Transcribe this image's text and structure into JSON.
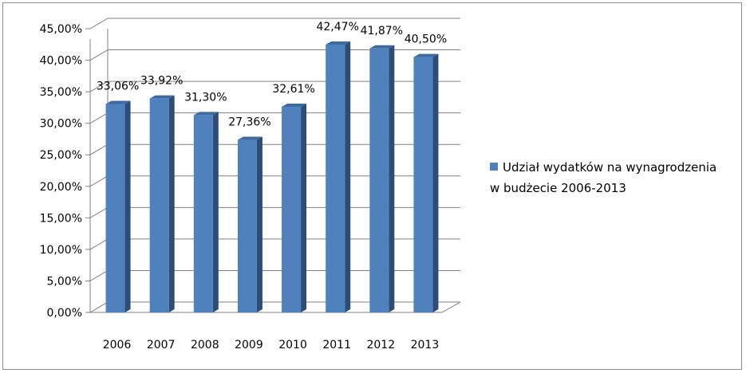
{
  "chart_data": {
    "type": "bar",
    "style": "3d-column",
    "categories": [
      "2006",
      "2007",
      "2008",
      "2009",
      "2010",
      "2011",
      "2012",
      "2013"
    ],
    "series": [
      {
        "name": "Udział wydatków na wynagrodzenia w budżecie 2006-2013",
        "values": [
          33.06,
          33.92,
          31.3,
          27.36,
          32.61,
          42.47,
          41.87,
          40.5
        ],
        "data_labels": [
          "33,06%",
          "33,92%",
          "31,30%",
          "27,36%",
          "32,61%",
          "42,47%",
          "41,87%",
          "40,50%"
        ]
      }
    ],
    "yticks": [
      "0,00%",
      "5,00%",
      "10,00%",
      "15,00%",
      "20,00%",
      "25,00%",
      "30,00%",
      "35,00%",
      "40,00%",
      "45,00%"
    ],
    "ylim": [
      0,
      45
    ],
    "title": "",
    "xlabel": "",
    "ylabel": "",
    "grid": true,
    "legend_position": "right",
    "colors": {
      "bar_front": "#4f81bd",
      "bar_side": "#2c4d75",
      "bar_top": "#3f6aa0"
    }
  }
}
